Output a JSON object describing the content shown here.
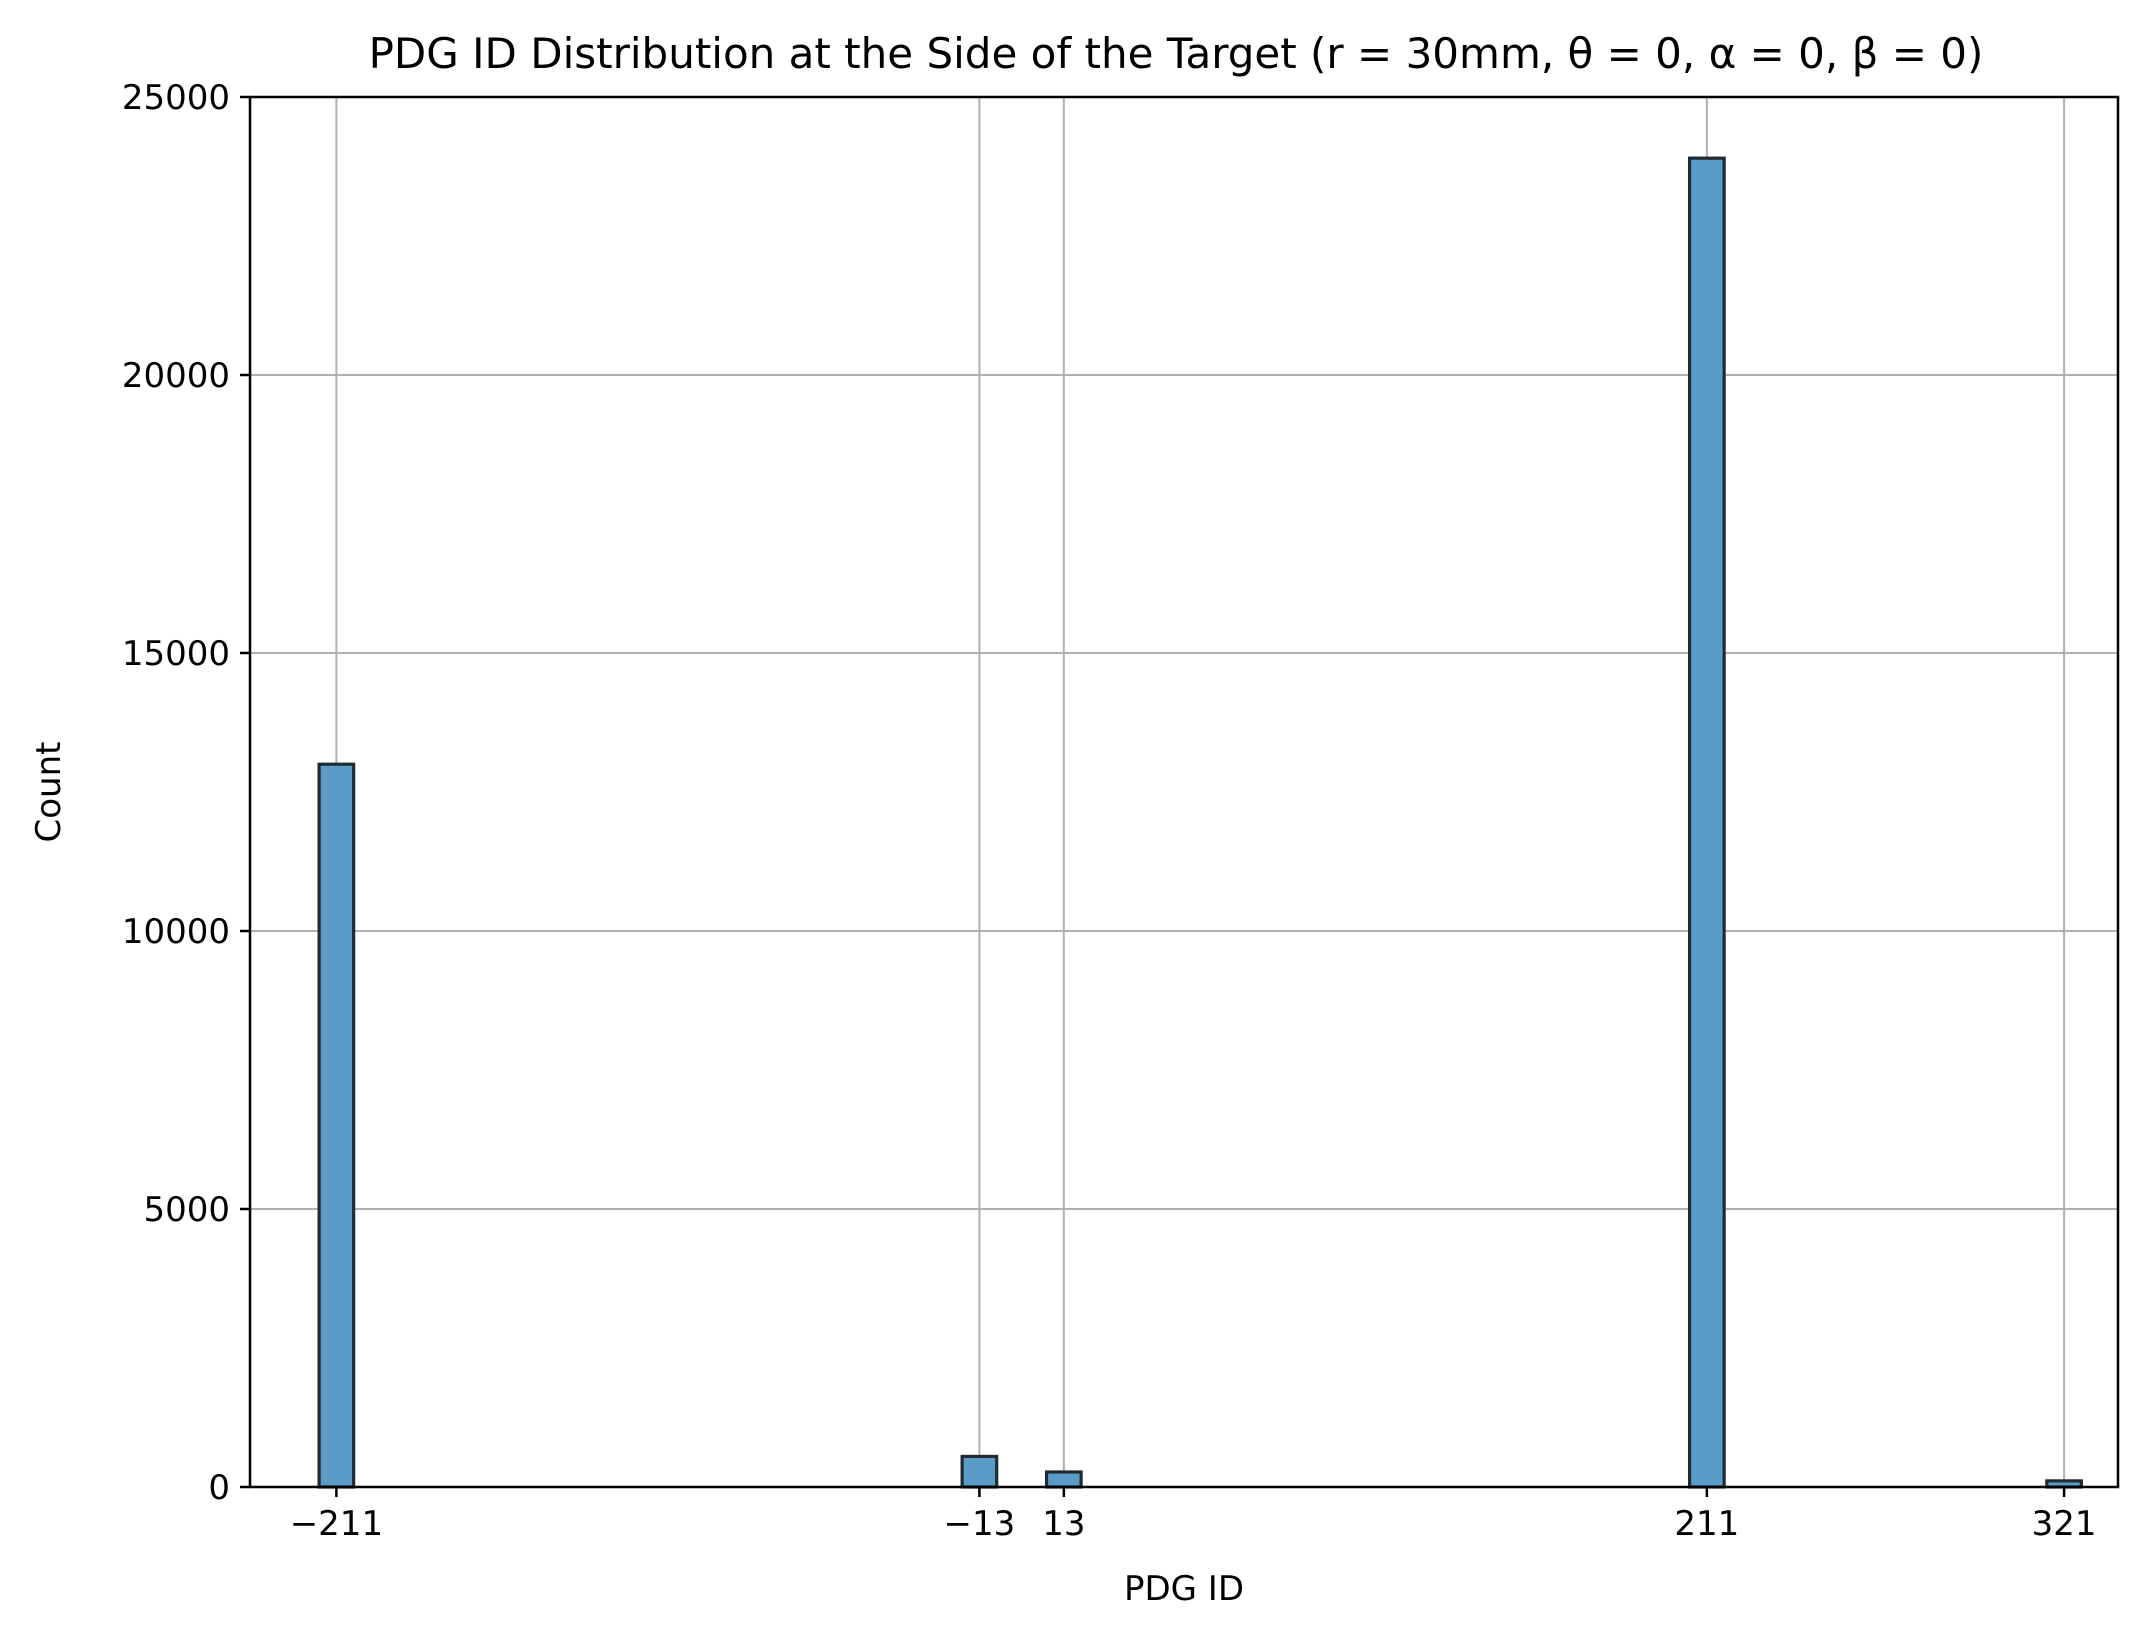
{
  "chart_data": {
    "type": "bar",
    "title": "PDG ID Distribution at the Side of the Target (r = 30mm, θ = 0, α = 0, β = 0)",
    "xlabel": "PDG ID",
    "ylabel": "Count",
    "xlim": [
      -237.6,
      337.6
    ],
    "ylim": [
      0,
      25000
    ],
    "xticks": [
      -211,
      -13,
      13,
      211,
      321
    ],
    "xtick_labels": [
      "−211",
      "−13",
      "13",
      "211",
      "321"
    ],
    "yticks": [
      0,
      5000,
      10000,
      15000,
      20000,
      25000
    ],
    "ytick_labels": [
      "0",
      "5000",
      "10000",
      "15000",
      "20000",
      "25000"
    ],
    "bin_width": 10.64,
    "bars": [
      {
        "x": -211,
        "value": 13000
      },
      {
        "x": -13,
        "value": 550
      },
      {
        "x": 13,
        "value": 270
      },
      {
        "x": 211,
        "value": 23900
      },
      {
        "x": 321,
        "value": 110
      }
    ],
    "bar_color": "#5b9bc8",
    "bar_edge_color": "#1f2a33",
    "grid": true
  }
}
